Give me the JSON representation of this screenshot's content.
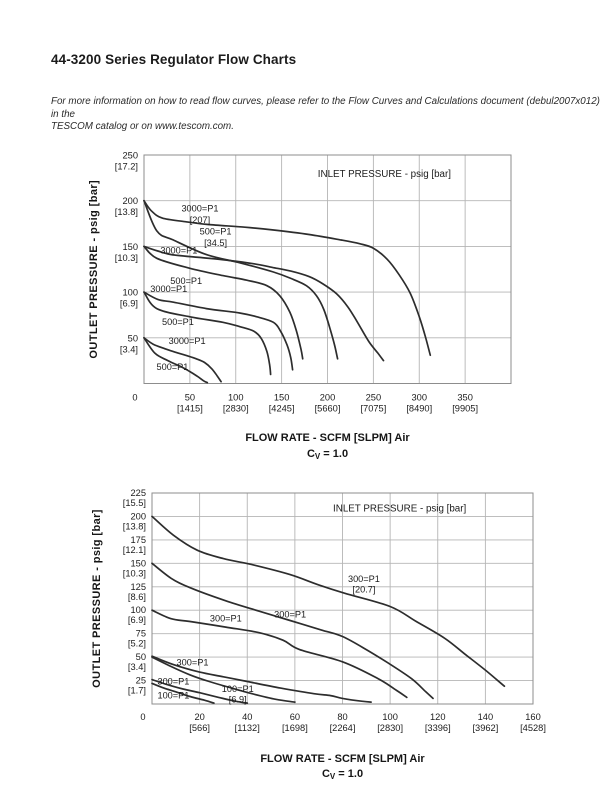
{
  "page": {
    "title": "44-3200 Series Regulator Flow Charts",
    "note_line1": "For more information on how to read flow curves, please refer to the Flow Curves and Calculations document (debul2007x012) in the",
    "note_line2": "TESCOM catalog or on www.tescom.com."
  },
  "colors": {
    "text": "#231f20",
    "grid": "#b5b5b5",
    "frame": "#8d8d8d",
    "curve": "#2d2d2d"
  },
  "chart_data": [
    {
      "type": "line",
      "annotation": "INLET PRESSURE - psig [bar]",
      "annotation_pos": [
        262,
        230
      ],
      "xlabel_line1": "FLOW RATE - SCFM [SLPM] Air",
      "xlabel_line2": "Cv = 1.0",
      "ylabel": "OUTLET PRESSURE - psig [bar]",
      "xlim": [
        0,
        400
      ],
      "ylim": [
        0,
        250
      ],
      "x_grid_step": 50,
      "y_grid_step": 50,
      "x_ticks": [
        {
          "v": 0
        },
        {
          "v": 50,
          "bracket": "[1415]"
        },
        {
          "v": 100,
          "bracket": "[2830]"
        },
        {
          "v": 150,
          "bracket": "[4245]"
        },
        {
          "v": 200,
          "bracket": "[5660]"
        },
        {
          "v": 250,
          "bracket": "[7075]"
        },
        {
          "v": 300,
          "bracket": "[8490]"
        },
        {
          "v": 350,
          "bracket": "[9905]"
        }
      ],
      "y_ticks": [
        {
          "v": 250,
          "bracket": "[17.2]"
        },
        {
          "v": 200,
          "bracket": "[13.8]"
        },
        {
          "v": 150,
          "bracket": "[10.3]"
        },
        {
          "v": 100,
          "bracket": "[6.9]"
        },
        {
          "v": 50,
          "bracket": "[3.4]"
        }
      ],
      "series": [
        {
          "id": "set200-inlet3000",
          "set_pressure": 200,
          "inlet": "3000=P1",
          "label_lines": [
            "3000=P1",
            "[207]"
          ],
          "label_pos": [
            61,
            188
          ],
          "points": [
            [
              0,
              200
            ],
            [
              8,
              189
            ],
            [
              20,
              181
            ],
            [
              45,
              177
            ],
            [
              70,
              174
            ],
            [
              110,
              171
            ],
            [
              140,
              168
            ],
            [
              180,
              163
            ],
            [
              215,
              157
            ],
            [
              235,
              153
            ],
            [
              250,
              148
            ],
            [
              265,
              136
            ],
            [
              278,
              119
            ],
            [
              290,
              99
            ],
            [
              300,
              73
            ],
            [
              307,
              50
            ],
            [
              312,
              31
            ]
          ]
        },
        {
          "id": "set200-inlet500",
          "set_pressure": 200,
          "inlet": "500=P1",
          "label_lines": [
            "500=P1",
            "[34.5]"
          ],
          "label_pos": [
            78,
            163
          ],
          "points": [
            [
              0,
              200
            ],
            [
              14,
              167
            ],
            [
              32,
              157
            ],
            [
              68,
              141
            ],
            [
              105,
              132
            ],
            [
              141,
              122
            ],
            [
              160,
              115
            ],
            [
              177,
              107
            ],
            [
              188,
              96
            ],
            [
              196,
              81
            ],
            [
              203,
              59
            ],
            [
              208,
              41
            ],
            [
              211,
              27
            ]
          ]
        },
        {
          "id": "set150-inlet3000",
          "set_pressure": 150,
          "inlet": "3000=P1",
          "label_lines": [
            "3000=P1"
          ],
          "label_pos": [
            38,
            142
          ],
          "points": [
            [
              0,
              150
            ],
            [
              15,
              145
            ],
            [
              30,
              141
            ],
            [
              60,
              138
            ],
            [
              90,
              135
            ],
            [
              120,
              131
            ],
            [
              140,
              127
            ],
            [
              160,
              123
            ],
            [
              180,
              117
            ],
            [
              195,
              109
            ],
            [
              210,
              98
            ],
            [
              222,
              84
            ],
            [
              232,
              68
            ],
            [
              245,
              46
            ],
            [
              255,
              33
            ],
            [
              261,
              25
            ]
          ]
        },
        {
          "id": "set150-inlet500",
          "set_pressure": 150,
          "inlet": "500=P1",
          "label_lines": [
            "500=P1"
          ],
          "label_pos": [
            46,
            109
          ],
          "points": [
            [
              0,
              150
            ],
            [
              14,
              137
            ],
            [
              50,
              126
            ],
            [
              86,
              118
            ],
            [
              112,
              113
            ],
            [
              134,
              107
            ],
            [
              148,
              96
            ],
            [
              159,
              78
            ],
            [
              166,
              58
            ],
            [
              171,
              38
            ],
            [
              173,
              27
            ]
          ]
        },
        {
          "id": "set100-inlet3000",
          "set_pressure": 100,
          "inlet": "3000=P1",
          "label_lines": [
            "3000=P1"
          ],
          "label_pos": [
            27,
            100
          ],
          "points": [
            [
              0,
              100
            ],
            [
              15,
              92
            ],
            [
              32,
              89
            ],
            [
              68,
              82
            ],
            [
              105,
              77
            ],
            [
              123,
              73
            ],
            [
              141,
              67
            ],
            [
              149,
              57
            ],
            [
              156,
              42
            ],
            [
              160,
              28
            ],
            [
              162,
              15
            ]
          ]
        },
        {
          "id": "set100-inlet500",
          "set_pressure": 100,
          "inlet": "500=P1",
          "label_lines": [
            "500=P1"
          ],
          "label_pos": [
            37,
            64
          ],
          "points": [
            [
              0,
              100
            ],
            [
              14,
              82
            ],
            [
              50,
              73
            ],
            [
              86,
              67
            ],
            [
              105,
              62
            ],
            [
              120,
              57
            ],
            [
              128,
              49
            ],
            [
              134,
              35
            ],
            [
              137,
              20
            ],
            [
              138,
              10
            ]
          ]
        },
        {
          "id": "set50-inlet3000",
          "set_pressure": 50,
          "inlet": "3000=P1",
          "label_lines": [
            "3000=P1"
          ],
          "label_pos": [
            47,
            43
          ],
          "points": [
            [
              0,
              50
            ],
            [
              10,
              43
            ],
            [
              23,
              38
            ],
            [
              35,
              34
            ],
            [
              45,
              31
            ],
            [
              57,
              27
            ],
            [
              66,
              23
            ],
            [
              74,
              16
            ],
            [
              80,
              8
            ],
            [
              84,
              2
            ]
          ]
        },
        {
          "id": "set50-inlet500",
          "set_pressure": 50,
          "inlet": "500=P1",
          "label_lines": [
            "500=P1"
          ],
          "label_pos": [
            31,
            15
          ],
          "points": [
            [
              0,
              50
            ],
            [
              12,
              33
            ],
            [
              26,
              25
            ],
            [
              41,
              18
            ],
            [
              50,
              13
            ],
            [
              58,
              8
            ],
            [
              65,
              3
            ],
            [
              69,
              1
            ]
          ]
        }
      ]
    },
    {
      "type": "line",
      "annotation": "INLET PRESSURE - psig [bar]",
      "annotation_pos": [
        104,
        209
      ],
      "xlabel_line1": "FLOW RATE - SCFM [SLPM] Air",
      "xlabel_line2": "Cv = 1.0",
      "ylabel": "OUTLET PRESSURE - psig [bar]",
      "xlim": [
        0,
        160
      ],
      "ylim": [
        0,
        225
      ],
      "x_grid_step": 20,
      "y_grid_step": 25,
      "x_ticks": [
        {
          "v": 0
        },
        {
          "v": 20,
          "bracket": "[566]"
        },
        {
          "v": 40,
          "bracket": "[1132]"
        },
        {
          "v": 60,
          "bracket": "[1698]"
        },
        {
          "v": 80,
          "bracket": "[2264]"
        },
        {
          "v": 100,
          "bracket": "[2830]"
        },
        {
          "v": 120,
          "bracket": "[3396]"
        },
        {
          "v": 140,
          "bracket": "[3962]"
        },
        {
          "v": 160,
          "bracket": "[4528]"
        }
      ],
      "y_ticks": [
        {
          "v": 225,
          "bracket": "[15.5]"
        },
        {
          "v": 200,
          "bracket": "[13.8]"
        },
        {
          "v": 175,
          "bracket": "[12.1]"
        },
        {
          "v": 150,
          "bracket": "[10.3]"
        },
        {
          "v": 125,
          "bracket": "[8.6]"
        },
        {
          "v": 100,
          "bracket": "[6.9]"
        },
        {
          "v": 75,
          "bracket": "[5.2]"
        },
        {
          "v": 50,
          "bracket": "[3.4]"
        },
        {
          "v": 25,
          "bracket": "[1.7]"
        }
      ],
      "series": [
        {
          "id": "set200-inlet300",
          "set_pressure": 200,
          "inlet": "300=P1",
          "label_lines": [
            "300=P1",
            "[20.7]"
          ],
          "label_pos": [
            89,
            130
          ],
          "points": [
            [
              0,
              200
            ],
            [
              9,
              180
            ],
            [
              19,
              164
            ],
            [
              30,
              155
            ],
            [
              43,
              148
            ],
            [
              58,
              138
            ],
            [
              70,
              127
            ],
            [
              81,
              118
            ],
            [
              100,
              104
            ],
            [
              111,
              88
            ],
            [
              123,
              70
            ],
            [
              132,
              52
            ],
            [
              141,
              34
            ],
            [
              148,
              19
            ]
          ]
        },
        {
          "id": "set150-inlet300",
          "set_pressure": 150,
          "inlet": "300=P1",
          "label_lines": [
            "300=P1"
          ],
          "label_pos": [
            58,
            92
          ],
          "points": [
            [
              0,
              150
            ],
            [
              8,
              134
            ],
            [
              16,
              124
            ],
            [
              31,
              110
            ],
            [
              45,
              99
            ],
            [
              58,
              89
            ],
            [
              71,
              79
            ],
            [
              80,
              72
            ],
            [
              90,
              58
            ],
            [
              99,
              44
            ],
            [
              109,
              27
            ],
            [
              115,
              13
            ],
            [
              118,
              6
            ]
          ]
        },
        {
          "id": "set100-inlet300",
          "set_pressure": 100,
          "inlet": "300=P1",
          "label_lines": [
            "300=P1"
          ],
          "label_pos": [
            31,
            88
          ],
          "points": [
            [
              0,
              100
            ],
            [
              8,
              91
            ],
            [
              16,
              88
            ],
            [
              31,
              82
            ],
            [
              45,
              76
            ],
            [
              55,
              68
            ],
            [
              62,
              58
            ],
            [
              80,
              45
            ],
            [
              95,
              27
            ],
            [
              103,
              14
            ],
            [
              107,
              7
            ]
          ]
        },
        {
          "id": "set50-inlet300",
          "set_pressure": 50,
          "inlet": "300=P1",
          "label_lines": [
            "300=P1"
          ],
          "label_pos": [
            17,
            41
          ],
          "points": [
            [
              0,
              51
            ],
            [
              9,
              42
            ],
            [
              20,
              34
            ],
            [
              30,
              29
            ],
            [
              40,
              24
            ],
            [
              54,
              17
            ],
            [
              68,
              11
            ],
            [
              75,
              9
            ],
            [
              80,
              6
            ],
            [
              88,
              3
            ],
            [
              92,
              2
            ]
          ]
        },
        {
          "id": "set50-inlet100",
          "set_pressure": 50,
          "inlet": "100=P1",
          "label_lines": [
            "100=P1",
            "[6.9]"
          ],
          "label_pos": [
            36,
            13
          ],
          "points": [
            [
              0,
              50
            ],
            [
              8,
              40
            ],
            [
              16,
              31
            ],
            [
              24,
              24
            ],
            [
              32,
              18
            ],
            [
              42,
              11
            ],
            [
              52,
              5
            ],
            [
              60,
              2
            ]
          ]
        },
        {
          "id": "set25-inlet300",
          "set_pressure": 25,
          "inlet": "300=P1",
          "label_lines": [
            "300=P1"
          ],
          "label_pos": [
            9,
            21
          ],
          "points": [
            [
              0,
              26
            ],
            [
              6,
              21
            ],
            [
              13,
              16
            ],
            [
              20,
              12
            ],
            [
              28,
              7
            ],
            [
              35,
              3
            ],
            [
              40,
              1
            ]
          ]
        },
        {
          "id": "set25-inlet100",
          "set_pressure": 25,
          "inlet": "100=P1",
          "label_lines": [
            "100=P1"
          ],
          "label_pos": [
            9,
            6
          ],
          "points": [
            [
              0,
              22
            ],
            [
              5,
              17
            ],
            [
              10,
              13
            ],
            [
              16,
              8
            ],
            [
              22,
              4
            ],
            [
              26,
              1
            ]
          ]
        }
      ]
    }
  ]
}
